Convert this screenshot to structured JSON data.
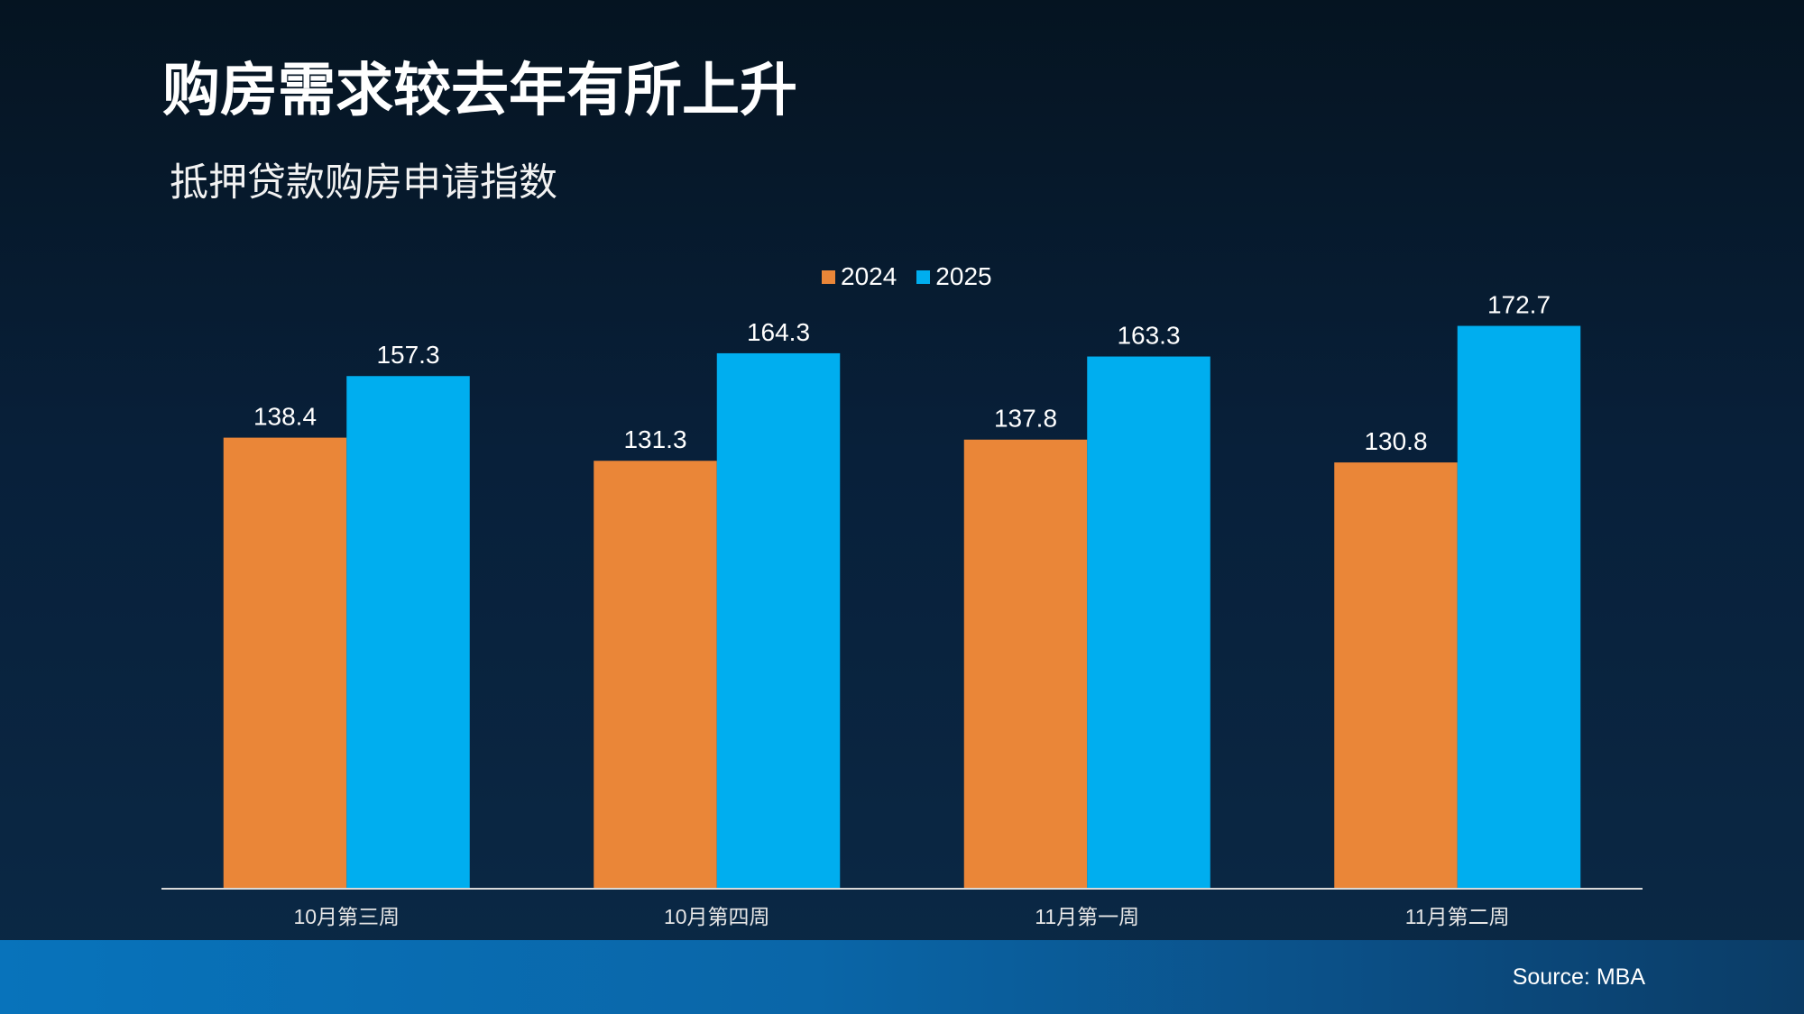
{
  "slide": {
    "title": "购房需求较去年有所上升",
    "source": "Source: MBA"
  },
  "chart_data": {
    "type": "bar",
    "title": "抵押贷款购房申请指数",
    "xlabel": "",
    "ylabel": "",
    "categories": [
      "10月第三周",
      "10月第四周",
      "11月第一周",
      "11月第二周"
    ],
    "series": [
      {
        "name": "2024",
        "values": [
          138.4,
          131.3,
          137.8,
          130.8
        ],
        "color": "#EA8638"
      },
      {
        "name": "2025",
        "values": [
          157.3,
          164.3,
          163.3,
          172.7
        ],
        "color": "#00AEEF"
      }
    ],
    "ylim": [
      0,
      190
    ],
    "legend": "top-center",
    "grid": false,
    "data_labels": true
  }
}
